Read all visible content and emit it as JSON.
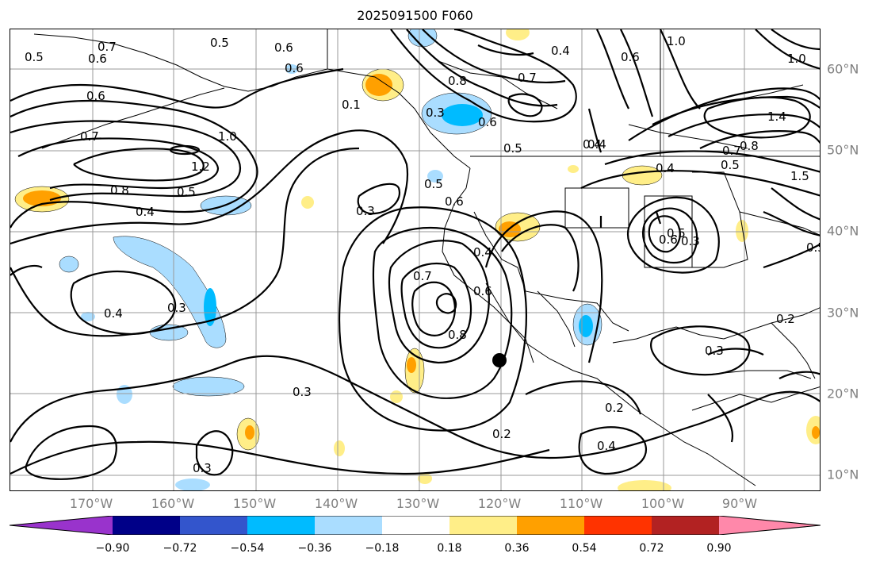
{
  "title": "2025091500 F060",
  "lon_labels": [
    "170°W",
    "160°W",
    "150°W",
    "140°W",
    "130°W",
    "120°W",
    "110°W",
    "100°W",
    "90°W"
  ],
  "lat_labels": [
    "60°N",
    "50°N",
    "40°N",
    "30°N",
    "20°N",
    "10°N"
  ],
  "colorbar": {
    "ticks": [
      "−0.90",
      "−0.72",
      "−0.54",
      "−0.36",
      "−0.18",
      "0.18",
      "0.36",
      "0.54",
      "0.72",
      "0.90"
    ],
    "colors": [
      "#9933cc",
      "#000088",
      "#3355cc",
      "#00bbff",
      "#aaddff",
      "#ffffff",
      "#ffee88",
      "#ffa000",
      "#ff3300",
      "#b22222",
      "#ff88aa"
    ]
  },
  "contour_labels": [
    "0.5",
    "0.6",
    "0.7",
    "0.6",
    "0.5",
    "0.6",
    "0.6",
    "1.0",
    "0.6",
    "0.4",
    "0.7",
    "0.8",
    "0.3",
    "0.6",
    "0.5",
    "0.7",
    "0.1",
    "0.4",
    "1.0",
    "1.2",
    "0.8",
    "0.5",
    "0.4",
    "0.3",
    "0.5",
    "0.6",
    "0.4",
    "0.7",
    "0.6",
    "0.8",
    "0.4",
    "0.3",
    "0.4",
    "0.3",
    "0.2",
    "0.2",
    "0.4",
    "0.3",
    "0.2",
    "0.3",
    "0.6",
    "0.5",
    "0.3",
    "0.5",
    "0.4",
    "1.4",
    "0.8",
    "0.7",
    "0.5",
    "1.0",
    "1.5"
  ],
  "marker": "storm-position-dot"
}
